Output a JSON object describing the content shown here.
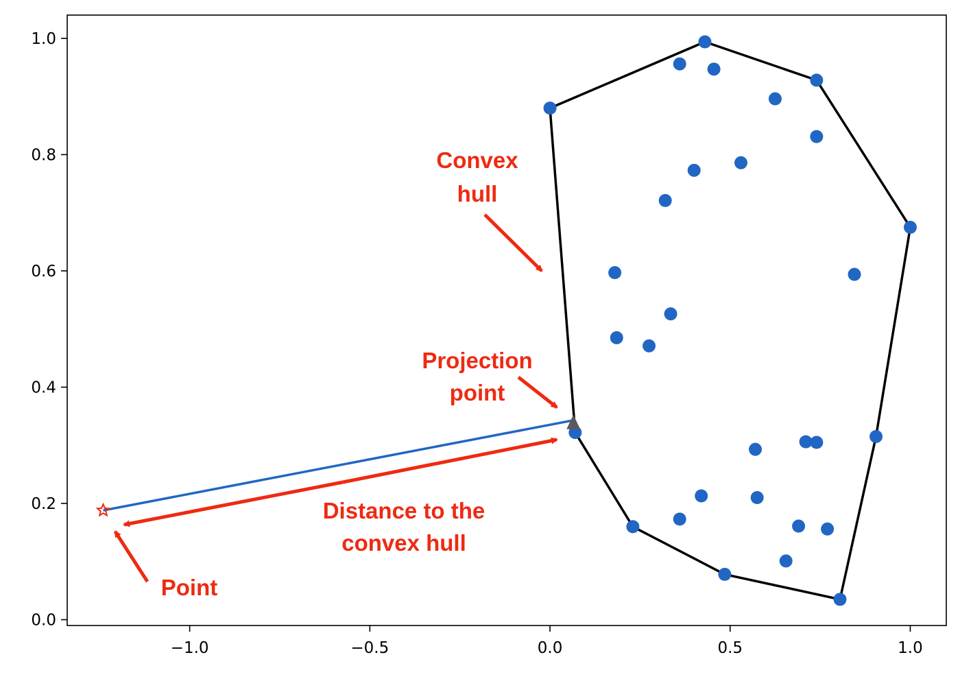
{
  "chart_data": {
    "type": "scatter",
    "title": "",
    "xlabel": "",
    "ylabel": "",
    "xlim": [
      -1.34,
      1.1
    ],
    "ylim": [
      -0.01,
      1.04
    ],
    "x_ticks": [
      -1.0,
      -0.5,
      0.0,
      0.5,
      1.0
    ],
    "x_tick_labels": [
      "−1.0",
      "−0.5",
      "0.0",
      "0.5",
      "1.0"
    ],
    "y_ticks": [
      0.0,
      0.2,
      0.4,
      0.6,
      0.8,
      1.0
    ],
    "y_tick_labels": [
      "0.0",
      "0.2",
      "0.4",
      "0.6",
      "0.8",
      "1.0"
    ],
    "grid": false,
    "legend": "none",
    "colors": {
      "points": "#2166c3",
      "hull": "#000000",
      "annotation": "#ee2a12",
      "projection": "#5a5a5a"
    },
    "points": [
      {
        "x": 0.0,
        "y": 0.88
      },
      {
        "x": 0.43,
        "y": 0.994
      },
      {
        "x": 0.36,
        "y": 0.956
      },
      {
        "x": 0.455,
        "y": 0.947
      },
      {
        "x": 0.74,
        "y": 0.928
      },
      {
        "x": 0.625,
        "y": 0.896
      },
      {
        "x": 0.74,
        "y": 0.831
      },
      {
        "x": 0.53,
        "y": 0.786
      },
      {
        "x": 0.4,
        "y": 0.773
      },
      {
        "x": 0.32,
        "y": 0.721
      },
      {
        "x": 1.0,
        "y": 0.675
      },
      {
        "x": 0.18,
        "y": 0.597
      },
      {
        "x": 0.845,
        "y": 0.594
      },
      {
        "x": 0.335,
        "y": 0.526
      },
      {
        "x": 0.185,
        "y": 0.485
      },
      {
        "x": 0.275,
        "y": 0.471
      },
      {
        "x": 0.07,
        "y": 0.322
      },
      {
        "x": 0.905,
        "y": 0.315
      },
      {
        "x": 0.71,
        "y": 0.306
      },
      {
        "x": 0.74,
        "y": 0.305
      },
      {
        "x": 0.57,
        "y": 0.293
      },
      {
        "x": 0.42,
        "y": 0.213
      },
      {
        "x": 0.575,
        "y": 0.21
      },
      {
        "x": 0.36,
        "y": 0.173
      },
      {
        "x": 0.23,
        "y": 0.16
      },
      {
        "x": 0.69,
        "y": 0.161
      },
      {
        "x": 0.77,
        "y": 0.156
      },
      {
        "x": 0.655,
        "y": 0.101
      },
      {
        "x": 0.485,
        "y": 0.078
      },
      {
        "x": 0.805,
        "y": 0.035
      }
    ],
    "hull": [
      {
        "x": 0.0,
        "y": 0.88
      },
      {
        "x": 0.43,
        "y": 0.994
      },
      {
        "x": 0.74,
        "y": 0.928
      },
      {
        "x": 1.0,
        "y": 0.675
      },
      {
        "x": 0.905,
        "y": 0.315
      },
      {
        "x": 0.805,
        "y": 0.035
      },
      {
        "x": 0.485,
        "y": 0.078
      },
      {
        "x": 0.23,
        "y": 0.16
      },
      {
        "x": 0.07,
        "y": 0.322
      },
      {
        "x": 0.0,
        "y": 0.88
      }
    ],
    "query_point": {
      "x": -1.24,
      "y": 0.188
    },
    "projection_point": {
      "x": 0.065,
      "y": 0.343
    },
    "annotations": {
      "convex_hull": {
        "lines": [
          "Convex",
          "hull"
        ]
      },
      "projection_point": {
        "lines": [
          "Projection",
          "point"
        ]
      },
      "distance": {
        "lines": [
          "Distance to the",
          "convex hull"
        ]
      },
      "point": {
        "lines": [
          "Point"
        ]
      }
    }
  }
}
